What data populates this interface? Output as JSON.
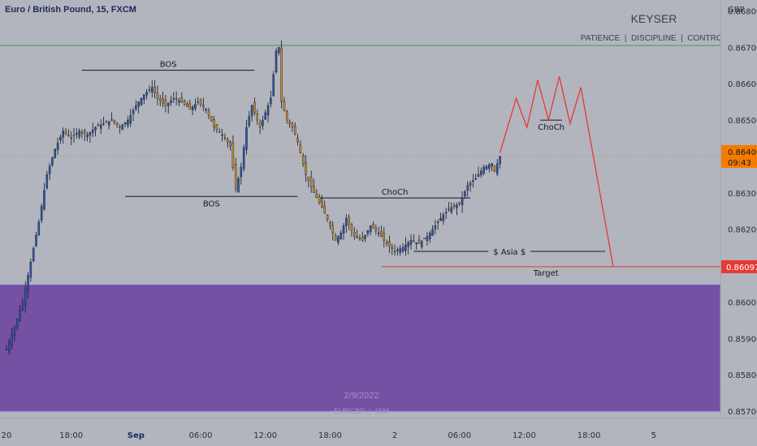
{
  "header": {
    "symbol_title": "Euro / British Pound, 15, FXCM",
    "brand": "KEYSER",
    "motto": "PATIENCE  |  DISCIPLINE  |  CONTROL",
    "currency": "GBP"
  },
  "watermark": {
    "date": "2/9/2022",
    "ticker": "EURGBP  |  15M"
  },
  "colors": {
    "background": "#b2b5be",
    "bull": "#2f55a5",
    "bear": "#c98a2a",
    "zone": "#7451a3",
    "projection": "#e53935",
    "high_line": "#4c9a4c",
    "current_price": "#f57c00",
    "target_label": "#e53935",
    "zone_line": "#5b6ee6"
  },
  "chart_data": {
    "type": "candlestick",
    "x_axis": {
      "ticks": [
        "20",
        "18:00",
        "Sep",
        "06:00",
        "12:00",
        "18:00",
        "2",
        "06:00",
        "12:00",
        "18:00",
        "5"
      ],
      "tick_bar_index": [
        0,
        24,
        48,
        72,
        96,
        120,
        144,
        168,
        192,
        216,
        240
      ]
    },
    "y_axis": {
      "label": "GBP",
      "ylim": [
        0.8568,
        0.8683
      ],
      "ticks": [
        "0.86800",
        "0.86700",
        "0.86600",
        "0.86500",
        "0.86300",
        "0.86200",
        "0.86100",
        "0.86000",
        "0.85900",
        "0.85800",
        "0.85700"
      ]
    },
    "current_price": {
      "value": 0.864,
      "label": "0.86400",
      "countdown": "09:43"
    },
    "target_price": {
      "value": 0.86097,
      "label": "0.86097"
    },
    "high_line": 0.86705,
    "demand_zone": {
      "top": 0.86047,
      "bottom": 0.857
    },
    "price_path": [
      [
        0,
        0.8587
      ],
      [
        3,
        0.8593
      ],
      [
        6,
        0.86
      ],
      [
        9,
        0.8611
      ],
      [
        12,
        0.8622
      ],
      [
        15,
        0.8635
      ],
      [
        18,
        0.8642
      ],
      [
        21,
        0.8647
      ],
      [
        24,
        0.8645
      ],
      [
        27,
        0.8647
      ],
      [
        30,
        0.8646
      ],
      [
        33,
        0.8648
      ],
      [
        36,
        0.8649
      ],
      [
        39,
        0.865
      ],
      [
        42,
        0.8648
      ],
      [
        45,
        0.865
      ],
      [
        48,
        0.8654
      ],
      [
        51,
        0.8657
      ],
      [
        54,
        0.8659
      ],
      [
        56,
        0.8656
      ],
      [
        59,
        0.8654
      ],
      [
        62,
        0.8656
      ],
      [
        65,
        0.8655
      ],
      [
        68,
        0.8653
      ],
      [
        71,
        0.8655
      ],
      [
        74,
        0.8653
      ],
      [
        77,
        0.8648
      ],
      [
        80,
        0.8646
      ],
      [
        83,
        0.8643
      ],
      [
        85,
        0.8631
      ],
      [
        87,
        0.8637
      ],
      [
        89,
        0.8648
      ],
      [
        91,
        0.8654
      ],
      [
        94,
        0.8648
      ],
      [
        96,
        0.8652
      ],
      [
        98,
        0.8656
      ],
      [
        100,
        0.8669
      ],
      [
        101,
        0.867
      ],
      [
        102,
        0.8655
      ],
      [
        104,
        0.865
      ],
      [
        106,
        0.8648
      ],
      [
        108,
        0.8644
      ],
      [
        111,
        0.8635
      ],
      [
        114,
        0.863
      ],
      [
        117,
        0.8626
      ],
      [
        120,
        0.8621
      ],
      [
        122,
        0.8617
      ],
      [
        124,
        0.8619
      ],
      [
        126,
        0.8623
      ],
      [
        129,
        0.8618
      ],
      [
        132,
        0.8617
      ],
      [
        135,
        0.8621
      ],
      [
        138,
        0.8619
      ],
      [
        141,
        0.8616
      ],
      [
        144,
        0.8614
      ],
      [
        147,
        0.8615
      ],
      [
        150,
        0.8617
      ],
      [
        153,
        0.8616
      ],
      [
        156,
        0.8618
      ],
      [
        159,
        0.8621
      ],
      [
        162,
        0.8624
      ],
      [
        165,
        0.8626
      ],
      [
        168,
        0.8627
      ],
      [
        171,
        0.8632
      ],
      [
        174,
        0.8634
      ],
      [
        177,
        0.8637
      ],
      [
        180,
        0.8638
      ],
      [
        181,
        0.8636
      ],
      [
        183,
        0.864
      ]
    ],
    "projection": [
      [
        183,
        0.8641
      ],
      [
        189,
        0.8656
      ],
      [
        193,
        0.8648
      ],
      [
        197,
        0.8661
      ],
      [
        201,
        0.865
      ],
      [
        205,
        0.8662
      ],
      [
        209,
        0.8649
      ],
      [
        213,
        0.8659
      ],
      [
        225,
        0.86097
      ]
    ],
    "annotations": [
      {
        "text": "BOS",
        "type": "line",
        "price": 0.86637,
        "start": 28,
        "end": 92
      },
      {
        "text": "BOS",
        "type": "line",
        "price": 0.8629,
        "start": 44,
        "end": 108
      },
      {
        "text": "ChoCh",
        "type": "line",
        "price": 0.86286,
        "start": 116,
        "end": 172
      },
      {
        "text": "ChoCh",
        "type": "line",
        "price": 0.865,
        "start": 198,
        "end": 206
      },
      {
        "text": "$ Asia $",
        "type": "line",
        "price": 0.86139,
        "start": 151,
        "end": 222
      },
      {
        "text": "Target",
        "type": "target",
        "price": 0.86097,
        "start": 139,
        "end": 225
      }
    ]
  }
}
